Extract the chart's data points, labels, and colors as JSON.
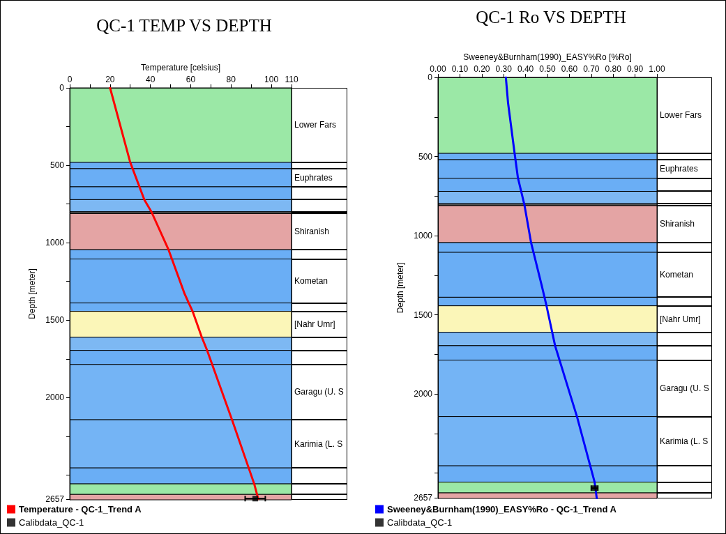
{
  "chart_data": [
    {
      "type": "line",
      "title": "QC-1 TEMP VS DEPTH",
      "xlabel": "Temperature [celsius]",
      "ylabel": "Depth [meter]",
      "xlim": [
        0,
        110
      ],
      "xticks": [
        0,
        {
          "value": 10,
          "label": null
        },
        20,
        {
          "value": 30,
          "label": null
        },
        40,
        {
          "value": 50,
          "label": null
        },
        60,
        {
          "value": 70,
          "label": null
        },
        80,
        {
          "value": 90,
          "label": null
        },
        100,
        110
      ],
      "ylim": [
        2660,
        0
      ],
      "yticks": [
        0,
        {
          "value": 250,
          "label": null
        },
        500,
        {
          "value": 750,
          "label": null
        },
        1000,
        {
          "value": 1250,
          "label": null
        },
        1500,
        {
          "value": 1750,
          "label": null
        },
        2000,
        {
          "value": 2250,
          "label": null
        },
        {
          "value": 2500,
          "label": null
        },
        2657
      ],
      "grid": false,
      "legend": "bottom left",
      "series": [
        {
          "name": "Temperature - QC-1_Trend A",
          "type": "line",
          "color": "#ff0000",
          "marker": "none",
          "x": [
            20,
            30,
            37,
            40.5,
            49,
            57,
            61,
            65.5,
            68,
            80.5,
            91.5,
            93.5
          ],
          "values": [
            0,
            481,
            722,
            800,
            1045,
            1331,
            1445,
            1610,
            1690,
            2143,
            2557,
            2655
          ]
        },
        {
          "name": "Calibdata_QC-1",
          "type": "scatter",
          "color": "#000000",
          "marker": "square",
          "x": [
            92
          ],
          "values": [
            2652
          ],
          "xerrors": [
            [
              87,
              97
            ]
          ]
        }
      ],
      "bands": [
        {
          "axis": "y",
          "from": 0,
          "to": 481,
          "label": "Lower Fars",
          "color": "#9be8a6"
        },
        {
          "axis": "y",
          "from": 481,
          "to": 522,
          "color": "#6aaef5"
        },
        {
          "axis": "y",
          "from": 522,
          "to": 639,
          "label": "Euphrates",
          "color": "#6aaef5"
        },
        {
          "axis": "y",
          "from": 639,
          "to": 722,
          "color": "#6aaef5"
        },
        {
          "axis": "y",
          "from": 722,
          "to": 800,
          "color": "#7db8f3"
        },
        {
          "axis": "y",
          "from": 800,
          "to": 812,
          "color": "#555555"
        },
        {
          "axis": "y",
          "from": 812,
          "to": 1045,
          "label": "Shiranish",
          "color": "#e4a4a4"
        },
        {
          "axis": "y",
          "from": 1045,
          "to": 1105,
          "color": "#6aaef5"
        },
        {
          "axis": "y",
          "from": 1105,
          "to": 1389,
          "label": "Kometan",
          "color": "#6aaef5"
        },
        {
          "axis": "y",
          "from": 1389,
          "to": 1443,
          "color": "#6aaef5"
        },
        {
          "axis": "y",
          "from": 1443,
          "to": 1610,
          "label": "[Nahr Umr]",
          "color": "#fbf6b8"
        },
        {
          "axis": "y",
          "from": 1610,
          "to": 1695,
          "color": "#7db8f3"
        },
        {
          "axis": "y",
          "from": 1695,
          "to": 1786,
          "color": "#6aaef5"
        },
        {
          "axis": "y",
          "from": 1786,
          "to": 2143,
          "label": "Garagu (U. S",
          "color": "#74b4f5"
        },
        {
          "axis": "y",
          "from": 2143,
          "to": 2454,
          "label": "Karimia (L. S",
          "color": "#74b4f5"
        },
        {
          "axis": "y",
          "from": 2454,
          "to": 2557,
          "color": "#6aaef5"
        },
        {
          "axis": "y",
          "from": 2557,
          "to": 2625,
          "color": "#9be8a6"
        },
        {
          "axis": "y",
          "from": 2625,
          "to": 2660,
          "color": "#e4a4a4"
        }
      ]
    },
    {
      "type": "line",
      "title": "QC-1 Ro VS DEPTH",
      "xlabel": "Sweeney&Burnham(1990)_EASY%Ro [%Ro]",
      "ylabel": "Depth [meter]",
      "xlim": [
        0,
        1
      ],
      "xticks": [
        {
          "value": 0,
          "label": "0.00"
        },
        {
          "value": 0.1,
          "label": "0.10"
        },
        {
          "value": 0.2,
          "label": "0.20"
        },
        {
          "value": 0.3,
          "label": "0.30"
        },
        {
          "value": 0.4,
          "label": "0.40"
        },
        {
          "value": 0.5,
          "label": "0.50"
        },
        {
          "value": 0.6,
          "label": "0.60"
        },
        {
          "value": 0.7,
          "label": "0.70"
        },
        {
          "value": 0.8,
          "label": "0.80"
        },
        {
          "value": 0.9,
          "label": "0.90"
        },
        {
          "value": 1,
          "label": "1.00"
        }
      ],
      "ylim": [
        2660,
        0
      ],
      "yticks": [
        0,
        {
          "value": 250,
          "label": null
        },
        500,
        {
          "value": 750,
          "label": null
        },
        1000,
        {
          "value": 1250,
          "label": null
        },
        1500,
        {
          "value": 1750,
          "label": null
        },
        2000,
        {
          "value": 2250,
          "label": null
        },
        {
          "value": 2500,
          "label": null
        },
        2657
      ],
      "grid": false,
      "legend": "bottom left",
      "series": [
        {
          "name": "Sweeney&Burnham(1990)_EASY%Ro - QC-1_Trend A",
          "type": "line",
          "color": "#0000ff",
          "marker": "none",
          "x": [
            0.31,
            0.32,
            0.35,
            0.365,
            0.395,
            0.425,
            0.475,
            0.495,
            0.535,
            0.635,
            0.715,
            0.725
          ],
          "values": [
            0,
            161,
            480,
            634,
            807,
            1043,
            1322,
            1439,
            1696,
            2144,
            2555,
            2658
          ]
        },
        {
          "name": "Calibdata_QC-1",
          "type": "scatter",
          "color": "#000000",
          "marker": "square",
          "x": [
            0.715
          ],
          "values": [
            2595
          ],
          "xerrors": [
            [
              0.7,
              0.73
            ]
          ]
        }
      ],
      "bands": [
        {
          "axis": "y",
          "from": 0,
          "to": 480,
          "label": "Lower Fars",
          "color": "#9be8a6"
        },
        {
          "axis": "y",
          "from": 480,
          "to": 520,
          "color": "#6aaef5"
        },
        {
          "axis": "y",
          "from": 520,
          "to": 637,
          "label": "Euphrates",
          "color": "#6aaef5"
        },
        {
          "axis": "y",
          "from": 637,
          "to": 720,
          "color": "#6aaef5"
        },
        {
          "axis": "y",
          "from": 720,
          "to": 798,
          "color": "#7db8f3"
        },
        {
          "axis": "y",
          "from": 798,
          "to": 810,
          "color": "#555555"
        },
        {
          "axis": "y",
          "from": 810,
          "to": 1044,
          "label": "Shiranish",
          "color": "#e4a4a4"
        },
        {
          "axis": "y",
          "from": 1044,
          "to": 1105,
          "color": "#6aaef5"
        },
        {
          "axis": "y",
          "from": 1105,
          "to": 1389,
          "label": "Kometan",
          "color": "#6aaef5"
        },
        {
          "axis": "y",
          "from": 1389,
          "to": 1443,
          "color": "#6aaef5"
        },
        {
          "axis": "y",
          "from": 1443,
          "to": 1610,
          "label": "[Nahr Umr]",
          "color": "#fbf6b8"
        },
        {
          "axis": "y",
          "from": 1610,
          "to": 1695,
          "color": "#7db8f3"
        },
        {
          "axis": "y",
          "from": 1695,
          "to": 1786,
          "color": "#6aaef5"
        },
        {
          "axis": "y",
          "from": 1786,
          "to": 2143,
          "label": "Garagu (U. S",
          "color": "#74b4f5"
        },
        {
          "axis": "y",
          "from": 2143,
          "to": 2454,
          "label": "Karimia (L. S",
          "color": "#74b4f5"
        },
        {
          "axis": "y",
          "from": 2454,
          "to": 2557,
          "color": "#6aaef5"
        },
        {
          "axis": "y",
          "from": 2557,
          "to": 2625,
          "color": "#9be8a6"
        },
        {
          "axis": "y",
          "from": 2625,
          "to": 2660,
          "color": "#e4a4a4"
        }
      ]
    }
  ]
}
